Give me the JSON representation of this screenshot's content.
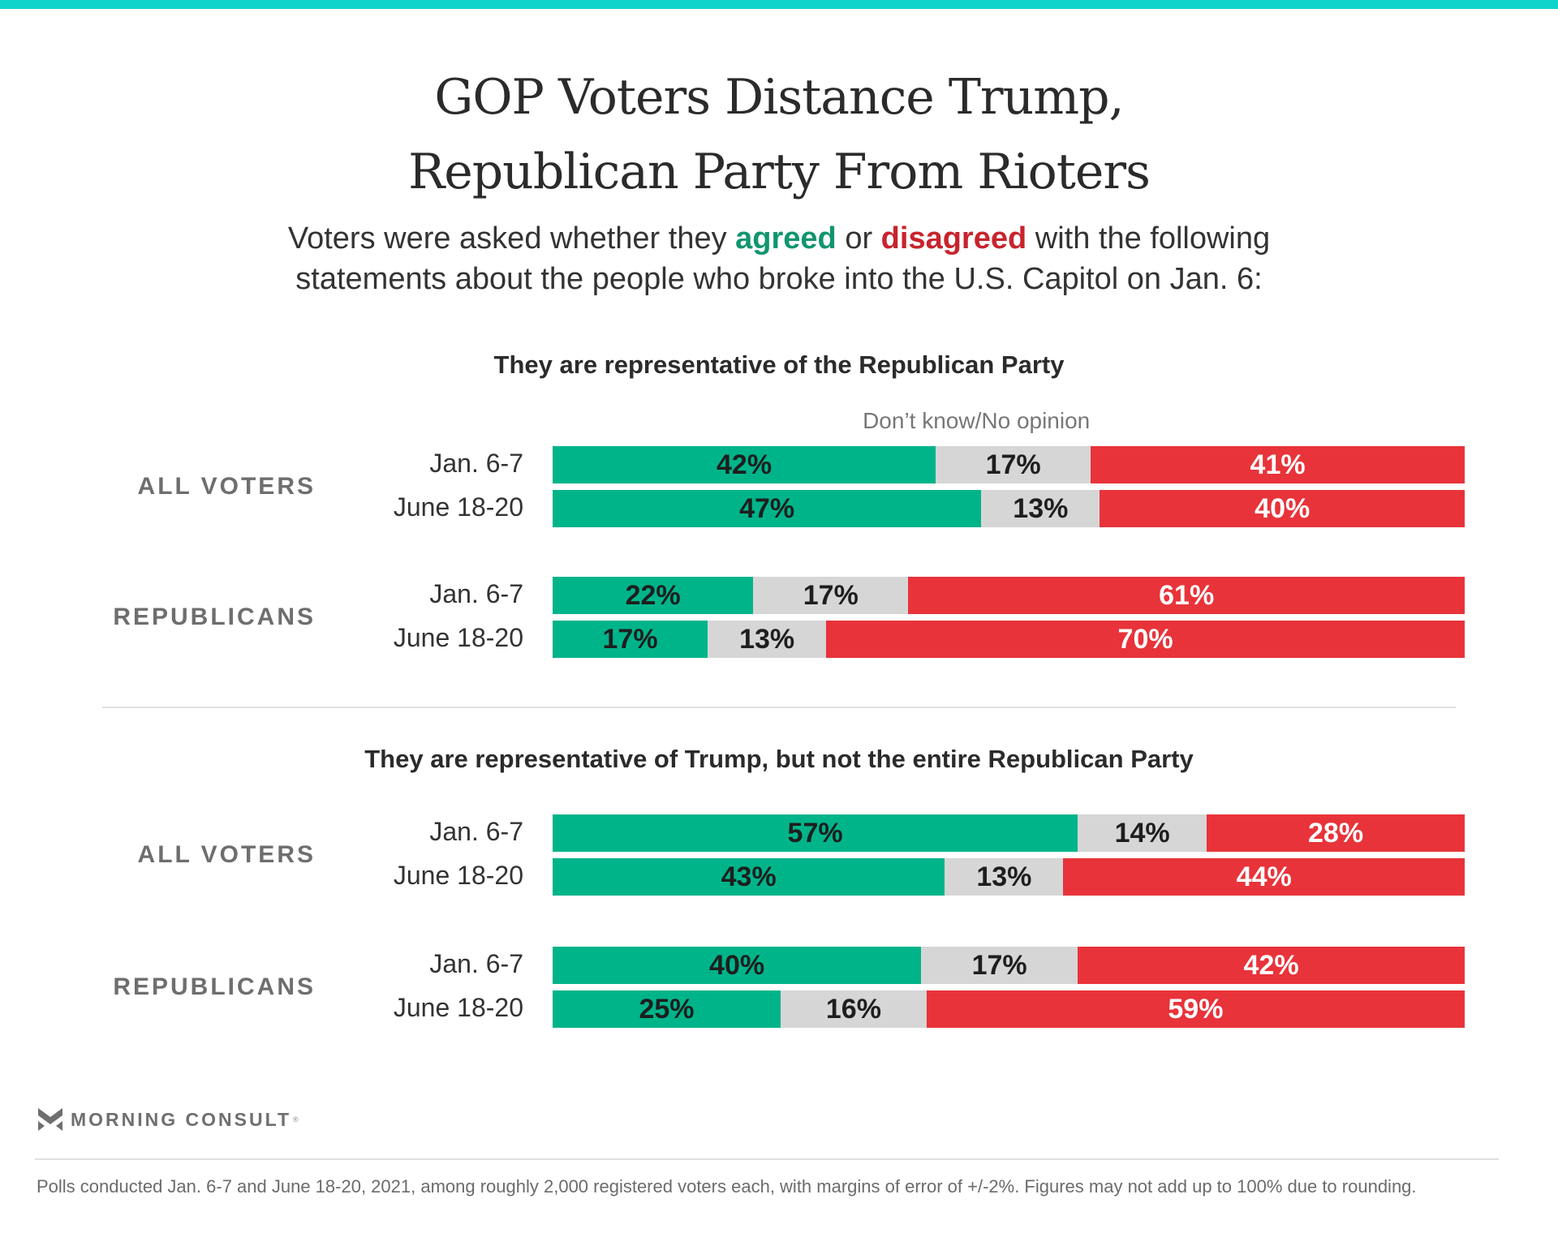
{
  "header": {
    "title_line1": "GOP Voters Distance Trump,",
    "title_line2": "Republican Party From Rioters",
    "subtitle_pre": "Voters were asked whether they ",
    "subtitle_agreed": "agreed",
    "subtitle_mid": " or ",
    "subtitle_disagreed": "disagreed",
    "subtitle_post": " with the following",
    "subtitle_line2": "statements about the people who broke into the U.S. Capitol on Jan. 6:"
  },
  "colors": {
    "top_accent": "#0fd4cb",
    "agree": "#00b48a",
    "dont_know": "#d6d6d6",
    "disagree": "#e8333a",
    "agree_text": "#10956f",
    "disagree_text": "#c8232c"
  },
  "legend": {
    "dont_know_label": "Don’t know/No opinion"
  },
  "footer": {
    "brand": "MORNING CONSULT",
    "registered_mark": "®",
    "note": "Polls conducted Jan. 6-7 and June 18-20, 2021, among roughly 2,000 registered voters each, with margins of error of +/-2%. Figures may not add up to 100% due to rounding."
  },
  "chart_data": {
    "type": "bar",
    "orientation": "horizontal-stacked-100",
    "title": "GOP Voters Distance Trump, Republican Party From Rioters",
    "series_names": [
      "Agree",
      "Don’t know/No opinion",
      "Disagree"
    ],
    "panels": [
      {
        "heading": "They are representative of the Republican Party",
        "groups": [
          {
            "label": "ALL VOTERS",
            "rows": [
              {
                "date": "Jan. 6-7",
                "agree": 42,
                "dont_know": 17,
                "disagree": 41
              },
              {
                "date": "June 18-20",
                "agree": 47,
                "dont_know": 13,
                "disagree": 40
              }
            ]
          },
          {
            "label": "REPUBLICANS",
            "rows": [
              {
                "date": "Jan. 6-7",
                "agree": 22,
                "dont_know": 17,
                "disagree": 61
              },
              {
                "date": "June 18-20",
                "agree": 17,
                "dont_know": 13,
                "disagree": 70
              }
            ]
          }
        ]
      },
      {
        "heading": "They are representative of Trump, but not the entire Republican Party",
        "groups": [
          {
            "label": "ALL VOTERS",
            "rows": [
              {
                "date": "Jan. 6-7",
                "agree": 57,
                "dont_know": 14,
                "disagree": 28
              },
              {
                "date": "June 18-20",
                "agree": 43,
                "dont_know": 13,
                "disagree": 44
              }
            ]
          },
          {
            "label": "REPUBLICANS",
            "rows": [
              {
                "date": "Jan. 6-7",
                "agree": 40,
                "dont_know": 17,
                "disagree": 42
              },
              {
                "date": "June 18-20",
                "agree": 25,
                "dont_know": 16,
                "disagree": 59
              }
            ]
          }
        ]
      }
    ]
  }
}
